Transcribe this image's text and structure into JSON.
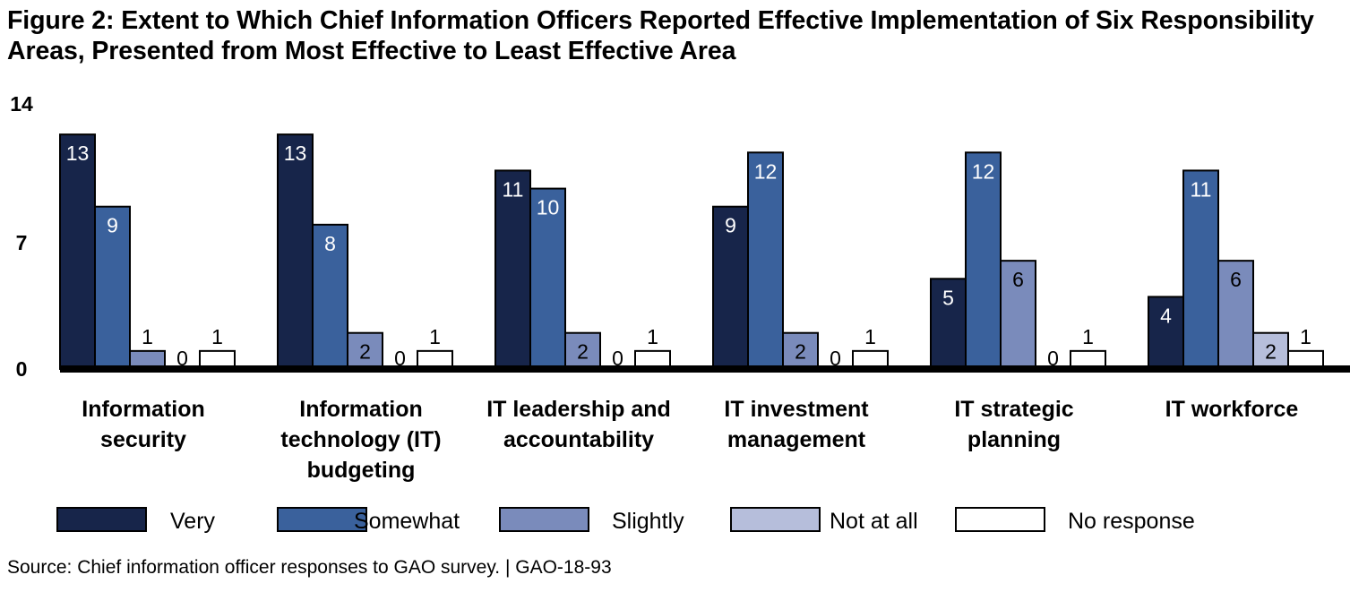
{
  "title": "Figure 2: Extent to Which Chief Information Officers Reported Effective Implementation of Six Responsibility Areas, Presented from Most Effective to Least Effective Area",
  "source": "Source: Chief information officer responses to GAO survey.  |  GAO-18-93",
  "chart_data": {
    "type": "bar",
    "title": "Figure 2: Extent to Which Chief Information Officers Reported Effective Implementation of Six Responsibility Areas, Presented from Most Effective to Least Effective Area",
    "xlabel": "",
    "ylabel": "",
    "ylim": [
      0,
      14
    ],
    "yticks": [
      "0",
      "7",
      "14"
    ],
    "grid": false,
    "legend_position": "bottom",
    "categories": [
      [
        "Information",
        "security"
      ],
      [
        "Information",
        "technology (IT)",
        "budgeting"
      ],
      [
        "IT leadership and",
        "accountability"
      ],
      [
        "IT investment",
        "management"
      ],
      [
        "IT strategic",
        "planning"
      ],
      [
        "IT workforce"
      ]
    ],
    "series": [
      {
        "name": "Very",
        "color": "#17254a",
        "label_color": "#ffffff",
        "values": [
          13,
          13,
          11,
          9,
          5,
          4
        ]
      },
      {
        "name": "Somewhat",
        "color": "#3a619c",
        "label_color": "#ffffff",
        "values": [
          9,
          8,
          10,
          12,
          12,
          11
        ]
      },
      {
        "name": "Slightly",
        "color": "#7a8bbb",
        "label_color": "#000000",
        "values": [
          1,
          2,
          2,
          2,
          6,
          6
        ]
      },
      {
        "name": "Not at all",
        "color": "#b6bedb",
        "label_color": "#000000",
        "values": [
          0,
          0,
          0,
          0,
          0,
          2
        ]
      },
      {
        "name": "No response",
        "color": "#ffffff",
        "label_color": "#000000",
        "values": [
          1,
          1,
          1,
          1,
          1,
          1
        ]
      }
    ]
  }
}
